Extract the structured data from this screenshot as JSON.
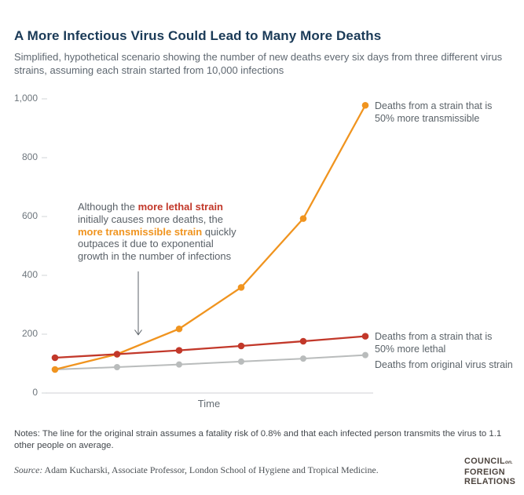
{
  "header": {
    "title": "A More Infectious Virus Could Lead to Many More Deaths",
    "subtitle": "Simplified, hypothetical scenario showing the number of new deaths every six days from three different virus strains, assuming each strain started from 10,000 infections"
  },
  "chart_data": {
    "type": "line",
    "x": [
      0,
      1,
      2,
      3,
      4,
      5
    ],
    "xlabel": "Time",
    "ylim": [
      0,
      1000
    ],
    "yticks": [
      0,
      200,
      400,
      600,
      800,
      1000
    ],
    "ytick_labels": [
      "0",
      "200",
      "400",
      "600",
      "800",
      "1,000"
    ],
    "grid": false,
    "legend_position": "right-of-line-ends",
    "series": [
      {
        "name": "original",
        "label": "Deaths from original virus strain",
        "color": "#B9BCBC",
        "values": [
          80,
          88,
          97,
          107,
          117,
          129
        ]
      },
      {
        "name": "transmissible",
        "label": "Deaths from a strain that is 50% more transmissible",
        "color": "#F0941F",
        "values": [
          80,
          132,
          218,
          359,
          593,
          978
        ]
      },
      {
        "name": "lethal",
        "label": "Deaths from a strain that is 50% more lethal",
        "color": "#C2382A",
        "values": [
          120,
          132,
          145,
          160,
          176,
          193
        ]
      }
    ],
    "annotation": {
      "part1": "Although the ",
      "lethal": "more lethal strain",
      "part2": "initially causes more deaths, the",
      "transmissible": "more transmissible strain",
      "part2b": " quickly",
      "part3": "outpaces it due to exponential",
      "part4": "growth in the number of infections"
    }
  },
  "footer": {
    "notes": "Notes: The line for the original strain assumes a fatality risk of 0.8% and that each infected person transmits the virus to 1.1 other people on average.",
    "source_label": "Source:",
    "source_text": " Adam Kucharski, Associate Professor, London School of Hygiene and Tropical Medicine.",
    "logo": {
      "line1": "COUNCIL",
      "on": "on.",
      "line2": "FOREIGN",
      "line3": "RELATIONS"
    }
  }
}
